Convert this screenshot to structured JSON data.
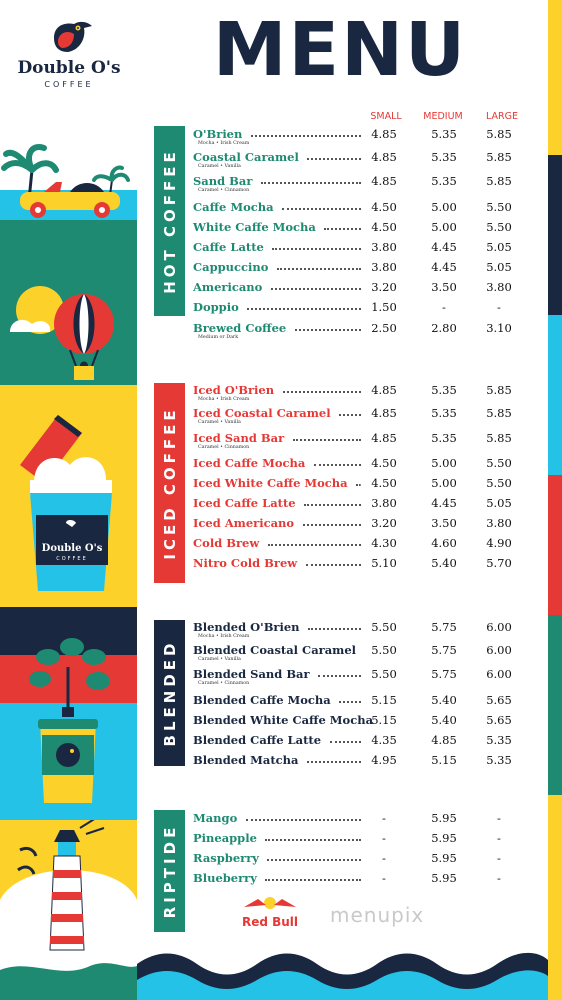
{
  "brand": {
    "name": "Double O's",
    "sub": "COFFEE"
  },
  "title": "MENU",
  "columns": {
    "small": "SMALL",
    "medium": "MEDIUM",
    "large": "LARGE"
  },
  "cup_brand": {
    "name": "Double O's",
    "sub": "COFFEE"
  },
  "colors": {
    "navy": "#1a2740",
    "teal": "#1e8a72",
    "red": "#e53935",
    "yellow": "#fcd12a",
    "cyan": "#24c2e6"
  },
  "sections": {
    "hot": {
      "label": "HOT COFFEE",
      "items": [
        {
          "name": "O'Brien",
          "sub": "Mocha • Irish Cream",
          "small": "4.85",
          "medium": "5.35",
          "large": "5.85"
        },
        {
          "name": "Coastal Caramel",
          "sub": "Caramel • Vanilla",
          "small": "4.85",
          "medium": "5.35",
          "large": "5.85"
        },
        {
          "name": "Sand Bar",
          "sub": "Caramel • Cinnamon",
          "small": "4.85",
          "medium": "5.35",
          "large": "5.85"
        },
        {
          "name": "Caffe Mocha",
          "sub": "",
          "small": "4.50",
          "medium": "5.00",
          "large": "5.50"
        },
        {
          "name": "White Caffe Mocha",
          "sub": "",
          "small": "4.50",
          "medium": "5.00",
          "large": "5.50"
        },
        {
          "name": "Caffe Latte",
          "sub": "",
          "small": "3.80",
          "medium": "4.45",
          "large": "5.05"
        },
        {
          "name": "Cappuccino",
          "sub": "",
          "small": "3.80",
          "medium": "4.45",
          "large": "5.05"
        },
        {
          "name": "Americano",
          "sub": "",
          "small": "3.20",
          "medium": "3.50",
          "large": "3.80"
        },
        {
          "name": "Doppio",
          "sub": "",
          "small": "1.50",
          "medium": "-",
          "large": "-"
        },
        {
          "name": "Brewed Coffee",
          "sub": "Medium or Dark",
          "small": "2.50",
          "medium": "2.80",
          "large": "3.10"
        }
      ]
    },
    "iced": {
      "label": "ICED COFFEE",
      "items": [
        {
          "name": "Iced O'Brien",
          "sub": "Mocha • Irish Cream",
          "small": "4.85",
          "medium": "5.35",
          "large": "5.85"
        },
        {
          "name": "Iced Coastal Caramel",
          "sub": "Caramel • Vanilla",
          "small": "4.85",
          "medium": "5.35",
          "large": "5.85"
        },
        {
          "name": "Iced Sand Bar",
          "sub": "Caramel • Cinnamon",
          "small": "4.85",
          "medium": "5.35",
          "large": "5.85"
        },
        {
          "name": "Iced Caffe Mocha",
          "sub": "",
          "small": "4.50",
          "medium": "5.00",
          "large": "5.50"
        },
        {
          "name": "Iced White Caffe Mocha",
          "sub": "",
          "small": "4.50",
          "medium": "5.00",
          "large": "5.50"
        },
        {
          "name": "Iced Caffe Latte",
          "sub": "",
          "small": "3.80",
          "medium": "4.45",
          "large": "5.05"
        },
        {
          "name": "Iced Americano",
          "sub": "",
          "small": "3.20",
          "medium": "3.50",
          "large": "3.80"
        },
        {
          "name": "Cold Brew",
          "sub": "",
          "small": "4.30",
          "medium": "4.60",
          "large": "4.90"
        },
        {
          "name": "Nitro Cold Brew",
          "sub": "",
          "small": "5.10",
          "medium": "5.40",
          "large": "5.70"
        }
      ]
    },
    "blended": {
      "label": "BLENDED",
      "items": [
        {
          "name": "Blended O'Brien",
          "sub": "Mocha • Irish Cream",
          "small": "5.50",
          "medium": "5.75",
          "large": "6.00"
        },
        {
          "name": "Blended Coastal Caramel",
          "sub": "Caramel • Vanilla",
          "small": "5.50",
          "medium": "5.75",
          "large": "6.00"
        },
        {
          "name": "Blended Sand Bar",
          "sub": "Caramel • Cinnamon",
          "small": "5.50",
          "medium": "5.75",
          "large": "6.00"
        },
        {
          "name": "Blended Caffe Mocha",
          "sub": "",
          "small": "5.15",
          "medium": "5.40",
          "large": "5.65"
        },
        {
          "name": "Blended White Caffe Mocha",
          "sub": "",
          "small": "5.15",
          "medium": "5.40",
          "large": "5.65"
        },
        {
          "name": "Blended Caffe Latte",
          "sub": "",
          "small": "4.35",
          "medium": "4.85",
          "large": "5.35"
        },
        {
          "name": "Blended Matcha",
          "sub": "",
          "small": "4.95",
          "medium": "5.15",
          "large": "5.35"
        }
      ]
    },
    "riptide": {
      "label": "RIPTIDE",
      "items": [
        {
          "name": "Mango",
          "sub": "",
          "small": "-",
          "medium": "5.95",
          "large": "-"
        },
        {
          "name": "Pineapple",
          "sub": "",
          "small": "-",
          "medium": "5.95",
          "large": "-"
        },
        {
          "name": "Raspberry",
          "sub": "",
          "small": "-",
          "medium": "5.95",
          "large": "-"
        },
        {
          "name": "Blueberry",
          "sub": "",
          "small": "-",
          "medium": "5.95",
          "large": "-"
        }
      ]
    }
  },
  "partner": "Red Bull",
  "watermark": "menupix"
}
